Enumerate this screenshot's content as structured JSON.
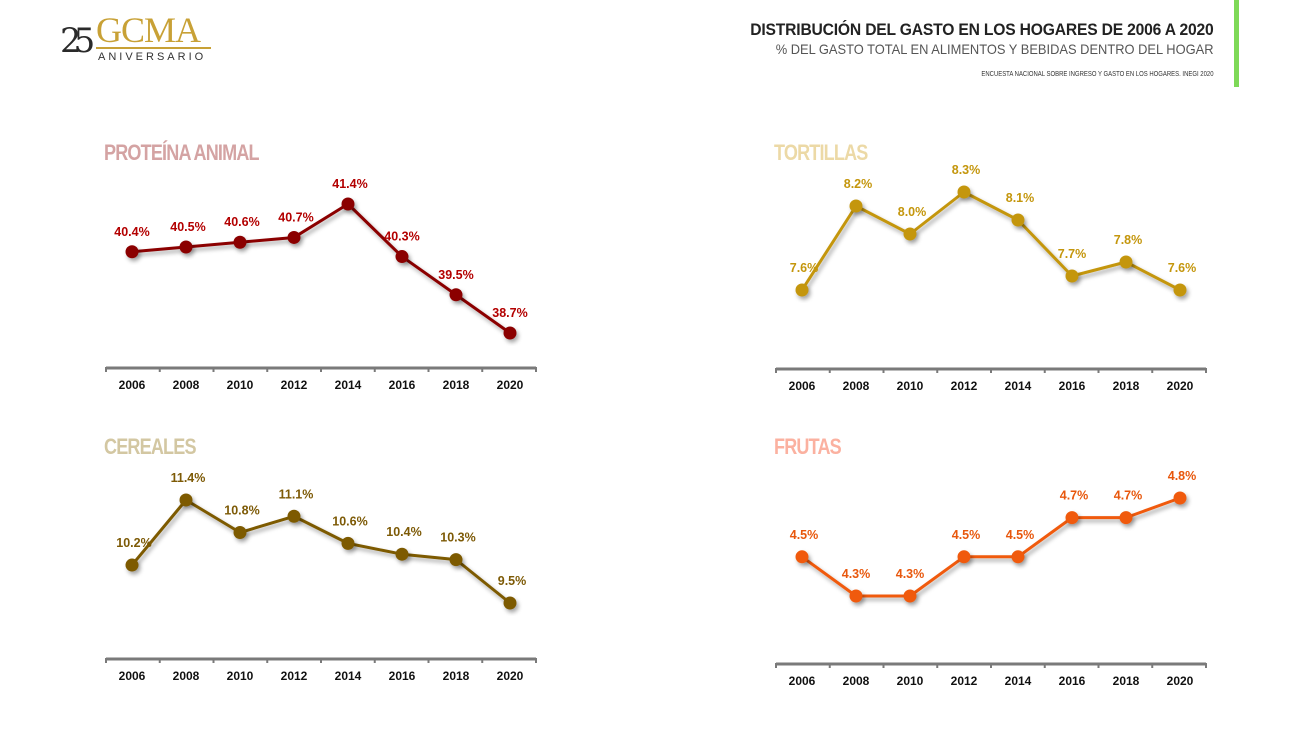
{
  "logo": {
    "number": "25",
    "brand": "GCMA",
    "tagline": "ANIVERSARIO"
  },
  "header": {
    "title": "DISTRIBUCIÓN DEL GASTO EN LOS HOGARES DE 2006 A 2020",
    "subtitle": "% DEL GASTO TOTAL EN ALIMENTOS Y BEBIDAS DENTRO DEL HOGAR",
    "source": "ENCUESTA NACIONAL SOBRE INGRESO Y GASTO EN LOS HOGARES. INEGI 2020"
  },
  "colors": {
    "accent_bar": "#7ed957",
    "axis": "#7a7a7a"
  },
  "chart_data": [
    {
      "type": "line",
      "title": "PROTEÍNA ANIMAL",
      "title_color": "#d4a3a3",
      "color": "#8b0000",
      "label_color": "#b30000",
      "categories": [
        "2006",
        "2008",
        "2010",
        "2012",
        "2014",
        "2016",
        "2018",
        "2020"
      ],
      "values": [
        40.4,
        40.5,
        40.6,
        40.7,
        41.4,
        40.3,
        39.5,
        38.7
      ],
      "labels": [
        "40.4%",
        "40.5%",
        "40.6%",
        "40.7%",
        "41.4%",
        "40.3%",
        "39.5%",
        "38.7%"
      ],
      "ylim": [
        37.6,
        41.8
      ],
      "xlabel": "",
      "ylabel": "",
      "grid": false,
      "legend": "none"
    },
    {
      "type": "line",
      "title": "TORTILLAS",
      "title_color": "#ecd9a6",
      "color": "#c4960c",
      "label_color": "#c4960c",
      "categories": [
        "2006",
        "2008",
        "2010",
        "2012",
        "2014",
        "2016",
        "2018",
        "2020"
      ],
      "values": [
        7.6,
        8.2,
        8.0,
        8.3,
        8.1,
        7.7,
        7.8,
        7.6
      ],
      "labels": [
        "7.6%",
        "8.2%",
        "8.0%",
        "8.3%",
        "8.1%",
        "7.7%",
        "7.8%",
        "7.6%"
      ],
      "ylim": [
        7.0,
        8.5
      ],
      "xlabel": "",
      "ylabel": "",
      "grid": false,
      "legend": "none"
    },
    {
      "type": "line",
      "title": "CEREALES",
      "title_color": "#d3c7a2",
      "color": "#7d5a06",
      "label_color": "#7d5a06",
      "categories": [
        "2006",
        "2008",
        "2010",
        "2012",
        "2014",
        "2016",
        "2018",
        "2020"
      ],
      "values": [
        10.2,
        11.4,
        10.8,
        11.1,
        10.6,
        10.4,
        10.3,
        9.5
      ],
      "labels": [
        "10.2%",
        "11.4%",
        "10.8%",
        "11.1%",
        "10.6%",
        "10.4%",
        "10.3%",
        "9.5%"
      ],
      "ylim": [
        8.7,
        11.7
      ],
      "xlabel": "",
      "ylabel": "",
      "grid": false,
      "legend": "none"
    },
    {
      "type": "line",
      "title": "FRUTAS",
      "title_color": "#fbb1a0",
      "color": "#f05a0a",
      "label_color": "#e8570c",
      "categories": [
        "2006",
        "2008",
        "2010",
        "2012",
        "2014",
        "2016",
        "2018",
        "2020"
      ],
      "values": [
        4.5,
        4.3,
        4.3,
        4.5,
        4.5,
        4.7,
        4.7,
        4.8
      ],
      "labels": [
        "4.5%",
        "4.3%",
        "4.3%",
        "4.5%",
        "4.5%",
        "4.7%",
        "4.7%",
        "4.8%"
      ],
      "ylim": [
        4.0,
        4.9
      ],
      "xlabel": "",
      "ylabel": "",
      "grid": false,
      "legend": "none"
    }
  ]
}
